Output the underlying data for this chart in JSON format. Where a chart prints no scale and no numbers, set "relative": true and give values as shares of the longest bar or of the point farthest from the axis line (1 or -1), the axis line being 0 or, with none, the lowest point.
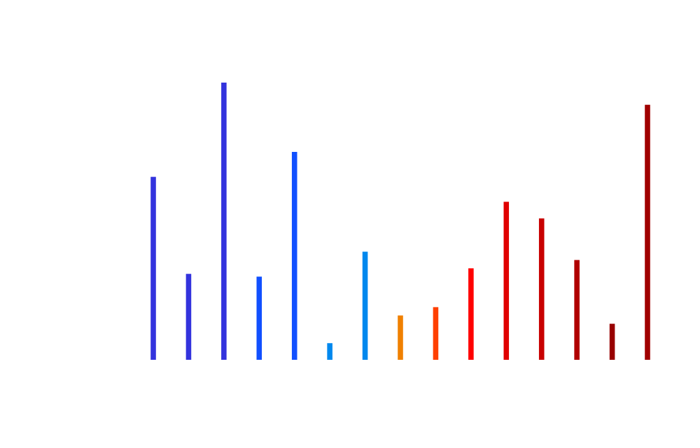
{
  "chart_data": {
    "type": "bar",
    "relative": true,
    "categories": [
      null,
      null,
      null,
      null,
      null,
      null,
      null,
      null,
      null,
      null,
      null,
      null,
      null,
      null,
      null
    ],
    "values": [
      0.66,
      0.31,
      1.0,
      0.3,
      0.75,
      0.06,
      0.39,
      0.16,
      0.19,
      0.33,
      0.57,
      0.51,
      0.36,
      0.13,
      0.92
    ],
    "colors": [
      "#3333dd",
      "#3333dd",
      "#3333dd",
      "#1150ff",
      "#1150ff",
      "#0088ee",
      "#0088ee",
      "#f08000",
      "#ff4000",
      "#ff0000",
      "#e00000",
      "#c80000",
      "#b00000",
      "#980000",
      "#a00000"
    ]
  }
}
